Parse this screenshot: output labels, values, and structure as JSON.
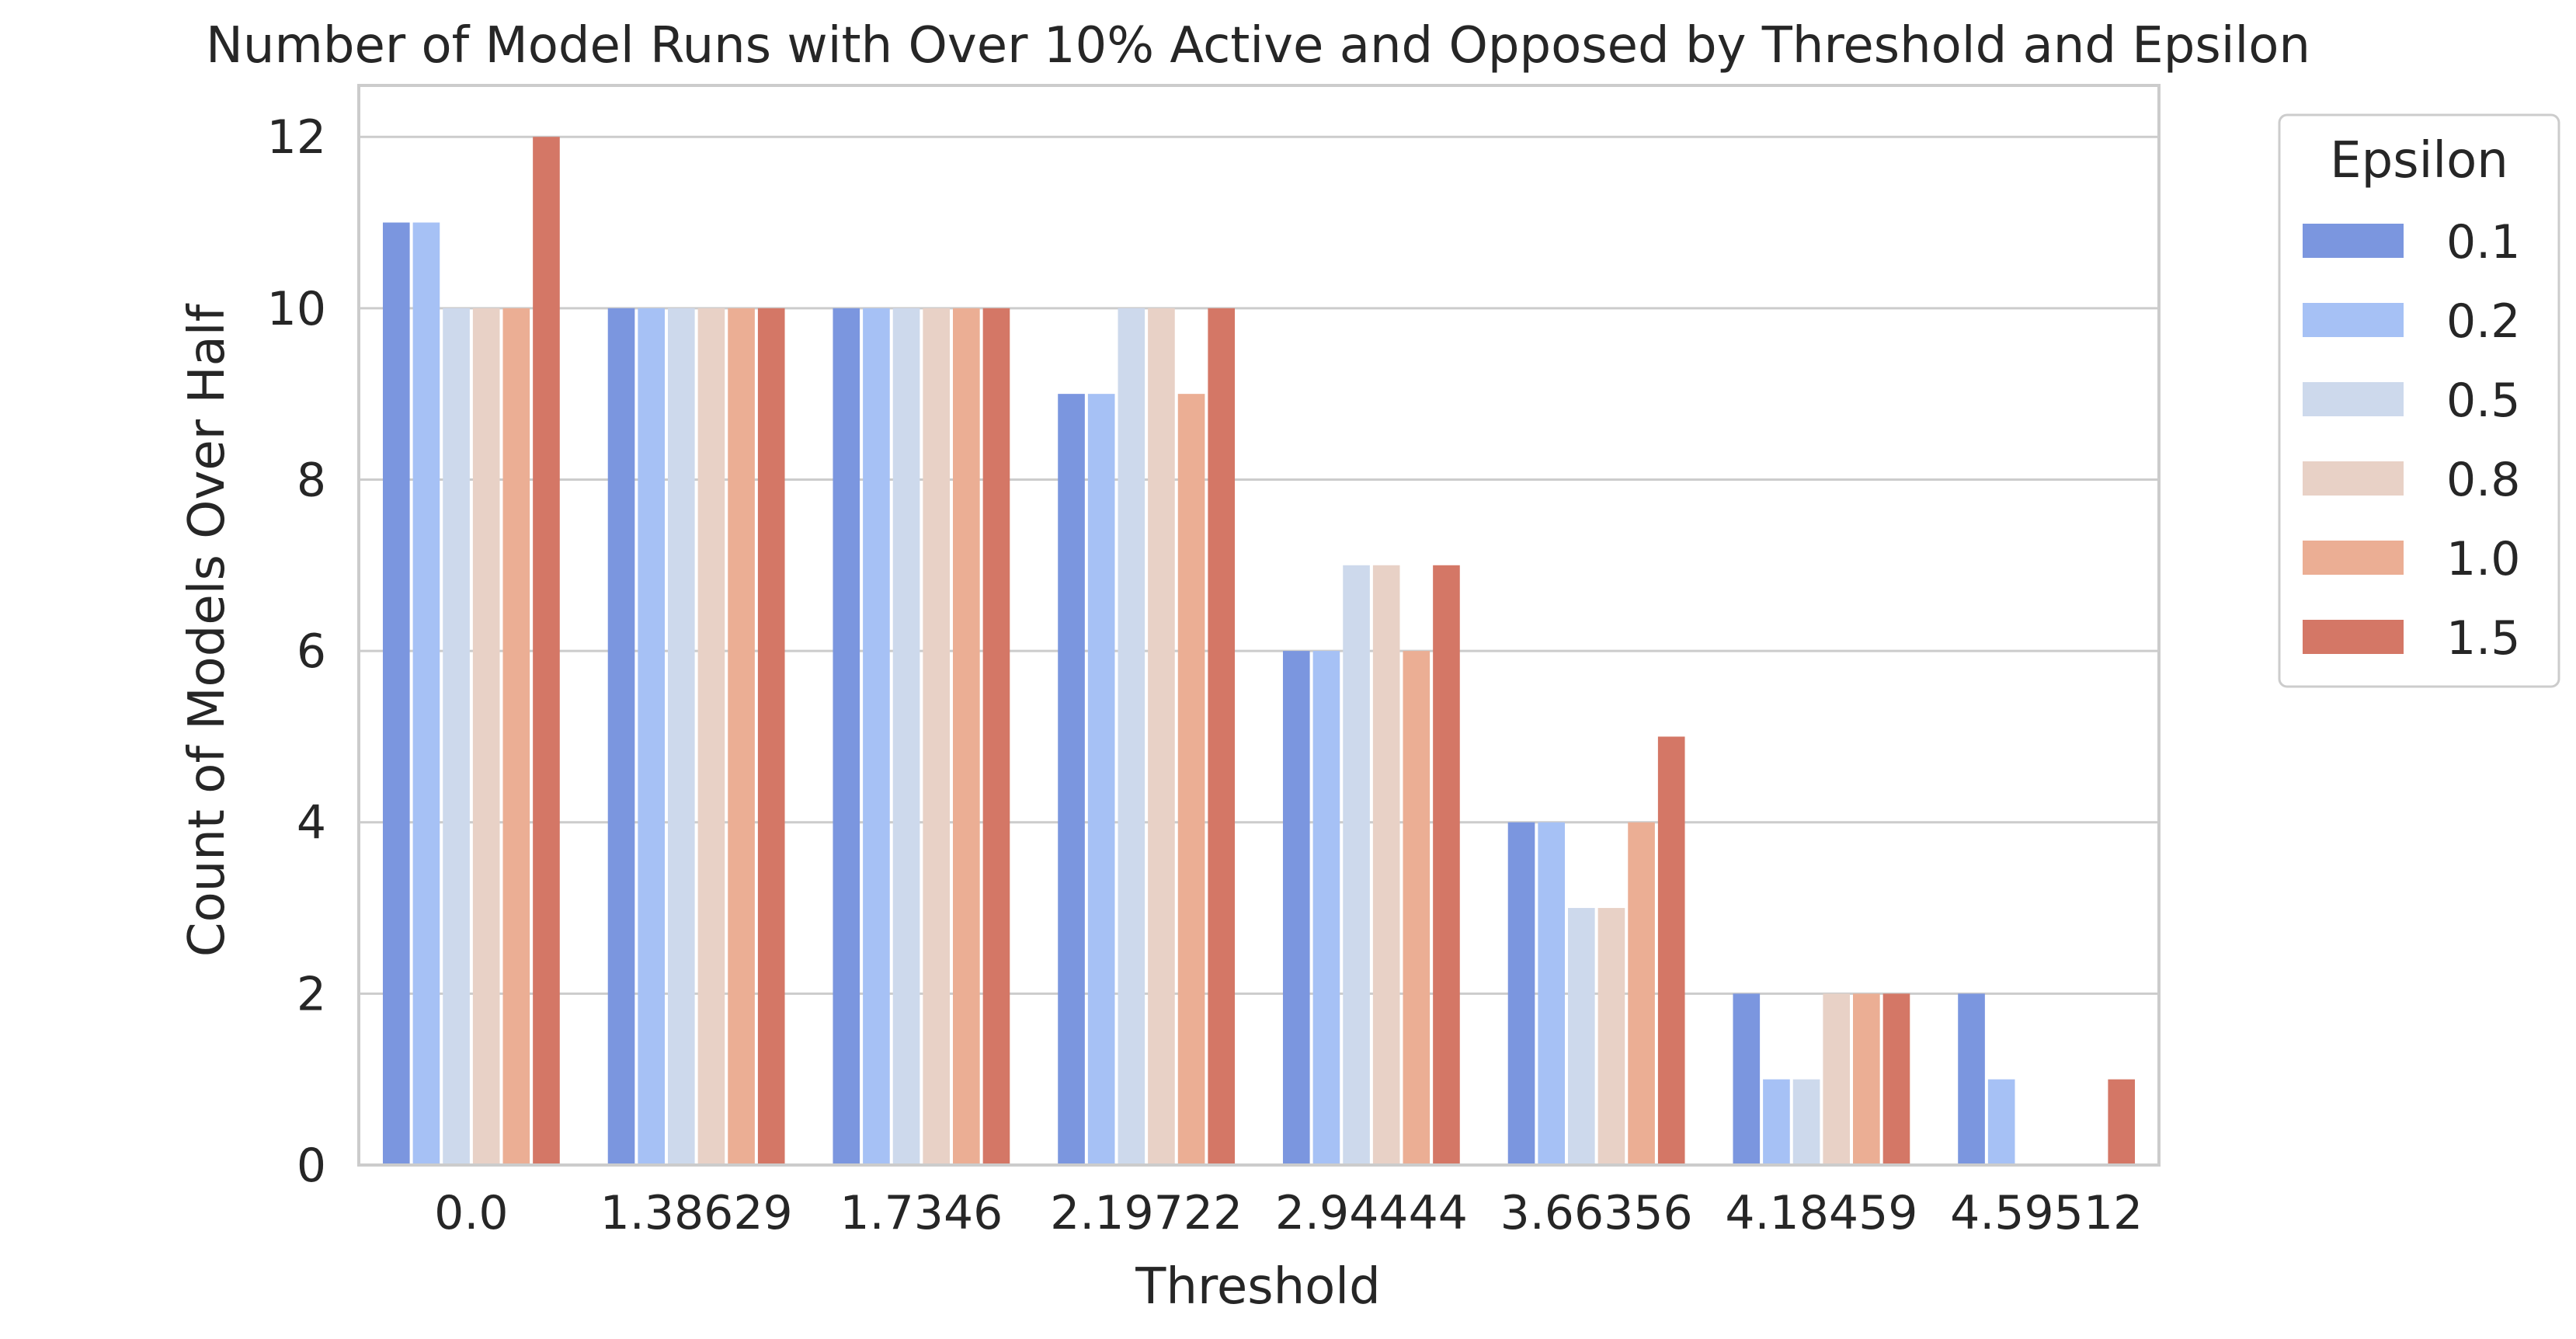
{
  "chart_data": {
    "type": "bar",
    "title": "Number of Model Runs with Over 10% Active and Opposed by Threshold and Epsilon",
    "xlabel": "Threshold",
    "ylabel": "Count of Models Over Half",
    "categories": [
      "0.0",
      "1.38629",
      "1.7346",
      "2.19722",
      "2.94444",
      "3.66356",
      "4.18459",
      "4.59512"
    ],
    "ylim": [
      0,
      12.6
    ],
    "yticks": [
      0,
      2,
      4,
      6,
      8,
      10,
      12
    ],
    "grid": true,
    "legend": {
      "title": "Epsilon",
      "placement": "outside-right"
    },
    "series": [
      {
        "name": "0.1",
        "color": "#7b96df",
        "values": [
          11,
          10,
          10,
          9,
          6,
          4,
          2,
          2
        ]
      },
      {
        "name": "0.2",
        "color": "#a6c1f5",
        "values": [
          11,
          10,
          10,
          9,
          6,
          4,
          1,
          1
        ]
      },
      {
        "name": "0.5",
        "color": "#cdd9ec",
        "values": [
          10,
          10,
          10,
          10,
          7,
          3,
          1,
          0
        ]
      },
      {
        "name": "0.8",
        "color": "#e8d1c6",
        "values": [
          10,
          10,
          10,
          10,
          7,
          3,
          2,
          0
        ]
      },
      {
        "name": "1.0",
        "color": "#ebae94",
        "values": [
          10,
          10,
          10,
          9,
          6,
          4,
          2,
          0
        ]
      },
      {
        "name": "1.5",
        "color": "#d47766",
        "values": [
          12,
          10,
          10,
          10,
          7,
          5,
          2,
          1
        ]
      }
    ]
  }
}
